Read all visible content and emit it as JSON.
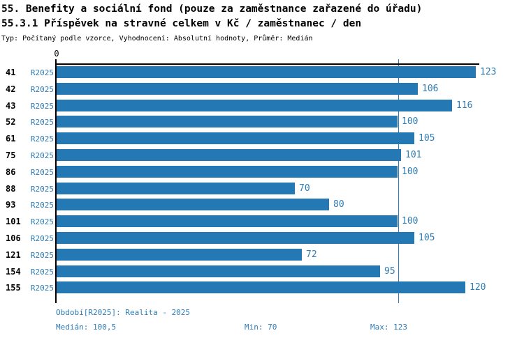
{
  "chart_data": {
    "type": "bar",
    "orientation": "horizontal",
    "title": "55. Benefity a sociální fond (pouze za zaměstnance zařazené do úřadu)",
    "subtitle": "55.3.1 Příspěvek na stravné celkem v Kč / zaměstnanec / den",
    "meta": "Typ: Počítaný podle vzorce, Vyhodnocení: Absolutní hodnoty, Průměr: Medián",
    "series_label": "R2025",
    "categories": [
      "41",
      "42",
      "43",
      "52",
      "61",
      "75",
      "86",
      "88",
      "93",
      "101",
      "106",
      "121",
      "154",
      "155"
    ],
    "values": [
      123,
      106,
      116,
      100,
      105,
      101,
      100,
      70,
      80,
      100,
      105,
      72,
      95,
      120
    ],
    "xlim": [
      0,
      124
    ],
    "x_tick_labels": [
      "0"
    ],
    "median": 100.5,
    "min": 70,
    "max": 123,
    "grid": false,
    "legend_position": "none"
  },
  "footer": {
    "period": "Období[R2025]: Realita - 2025",
    "median_label": "Medián: 100,5",
    "min_label": "Min: 70",
    "max_label": "Max: 123"
  },
  "colors": {
    "bar": "#2478b4",
    "accent_text": "#2e7cb5",
    "median_line": "#2e7cb5",
    "axis": "#000000",
    "text": "#000000",
    "background": "#ffffff"
  }
}
